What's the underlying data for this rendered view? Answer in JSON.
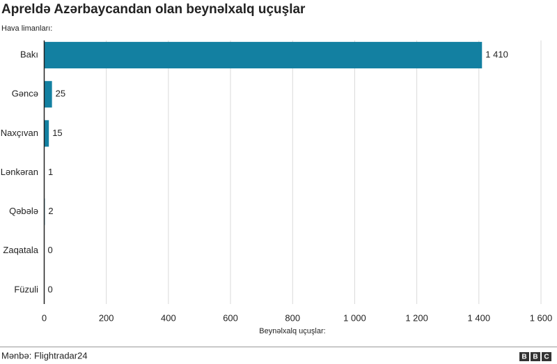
{
  "chart_data": {
    "type": "bar",
    "orientation": "horizontal",
    "title": "Apreldə Azərbaycandan olan beynəlxalq uçuşlar",
    "y_label": "Hava limanları:",
    "x_label": "Beynəlxalq uçuşlar:",
    "source": "Mənbə: Flightradar24",
    "logo": "BBC",
    "categories": [
      "Bakı",
      "Gəncə",
      "Naxçıvan",
      "Lənkəran",
      "Qəbələ",
      "Zaqatala",
      "Füzuli"
    ],
    "values": [
      1410,
      25,
      15,
      1,
      2,
      0,
      0
    ],
    "value_labels": [
      "1 410",
      "25",
      "15",
      "1",
      "2",
      "0",
      "0"
    ],
    "color": "#1380a1",
    "xlim": [
      0,
      1600
    ],
    "xticks": [
      0,
      200,
      400,
      600,
      800,
      {
        "value": 1000,
        "label": "1 000"
      },
      {
        "value": 1200,
        "label": "1 200"
      },
      {
        "value": 1400,
        "label": "1 400"
      },
      {
        "value": 1600,
        "label": "1 600"
      }
    ],
    "grid": true
  }
}
